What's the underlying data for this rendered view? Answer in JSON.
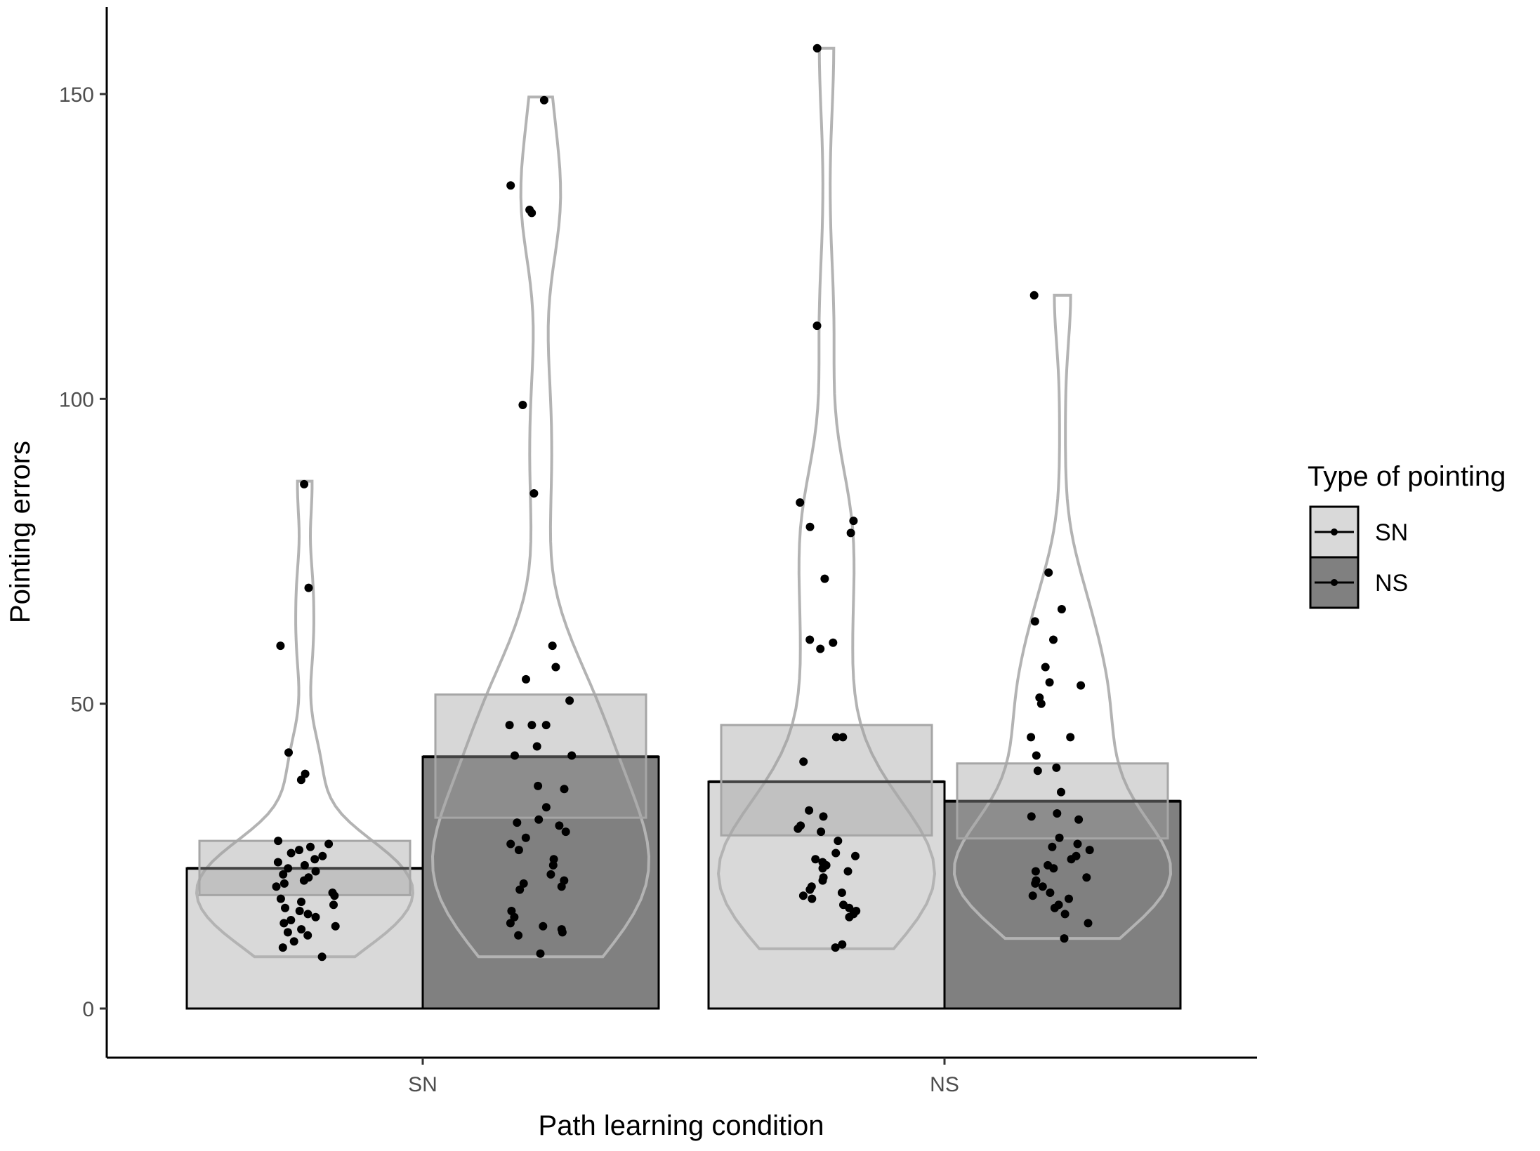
{
  "chart_data": {
    "type": "bar",
    "title": "",
    "xlabel": "Path learning condition",
    "ylabel": "Pointing errors",
    "categories": [
      "SN",
      "NS"
    ],
    "ylim": [
      -7.5,
      164
    ],
    "yticks": [
      0,
      50,
      100,
      150
    ],
    "grid": false,
    "legend": {
      "title": "Type of pointing",
      "position": "right",
      "entries": [
        {
          "label": "SN",
          "fill": "#d9d9d9"
        },
        {
          "label": "NS",
          "fill": "#808080"
        }
      ]
    },
    "series": [
      {
        "name": "SN",
        "fill": "#d9d9d9",
        "means": [
          23,
          37.2
        ],
        "ci": [
          [
            18.6,
            27.5
          ],
          [
            28.4,
            46.5
          ]
        ],
        "violin": [
          {
            "min": 8.5,
            "max": 86.5
          },
          {
            "min": 9.8,
            "max": 157.5
          }
        ],
        "points": [
          [
            86,
            69,
            59.5,
            42,
            37.5,
            38.5,
            27.5,
            27,
            26.5,
            26,
            25.5,
            25,
            24.5,
            24,
            23.5,
            23,
            22.5,
            22,
            21.5,
            21,
            20.5,
            20,
            19,
            18.5,
            18,
            17.5,
            17,
            16.5,
            16,
            15.5,
            15,
            14.5,
            14,
            13.5,
            13,
            12.5,
            12,
            11,
            10,
            8.5
          ],
          [
            157.5,
            112,
            83,
            80,
            79,
            78,
            70.5,
            60.5,
            60,
            59,
            44.5,
            44.5,
            40.5,
            32.5,
            31.5,
            30,
            29.5,
            29,
            27.5,
            25.5,
            25,
            24.5,
            24,
            23.5,
            23,
            22.5,
            21.5,
            21,
            20,
            19.5,
            19,
            18.5,
            18,
            17,
            16.5,
            16,
            15.5,
            15,
            10.5,
            10
          ]
        ]
      },
      {
        "name": "NS",
        "fill": "#808080",
        "means": [
          41.3,
          34
        ],
        "ci": [
          [
            31.3,
            51.5
          ],
          [
            27.9,
            40.2
          ]
        ],
        "violin": [
          {
            "min": 8.5,
            "max": 149.5
          },
          {
            "min": 11.5,
            "max": 117
          }
        ],
        "points": [
          [
            149,
            135,
            131,
            130.5,
            99,
            84.5,
            59.5,
            56,
            54,
            50.5,
            46.5,
            46.5,
            46.5,
            43,
            41.5,
            41.5,
            36.5,
            36,
            33,
            31,
            30.5,
            30,
            29,
            28,
            27,
            26,
            24.5,
            23.5,
            22,
            21,
            20.5,
            20,
            19.5,
            16,
            15,
            14,
            13.5,
            13,
            12.5,
            12,
            9
          ],
          [
            117,
            71.5,
            65.5,
            63.5,
            60.5,
            56,
            53.5,
            53,
            51,
            50,
            44.5,
            44.5,
            41.5,
            39.5,
            39,
            35.5,
            32,
            31.5,
            31,
            28,
            27,
            26.5,
            26,
            25,
            24.5,
            23.5,
            23,
            22.5,
            21.5,
            21,
            20.5,
            20,
            19,
            18.5,
            18,
            17,
            16.5,
            15.5,
            14,
            11.5
          ]
        ]
      }
    ]
  }
}
